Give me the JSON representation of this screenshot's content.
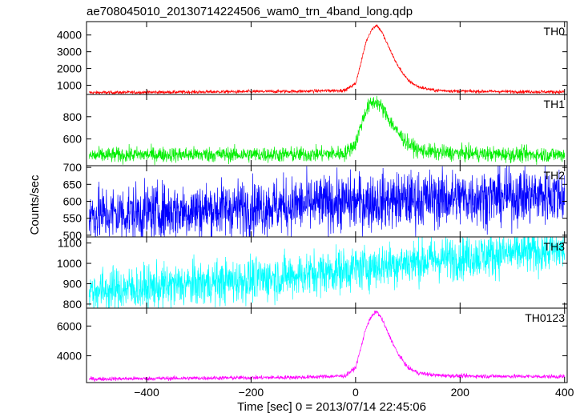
{
  "chart_data": {
    "type": "line",
    "title": "ae708045010_20130714224506_wam0_trn_4band_long.qdp",
    "xlabel": "Time [sec] 0 = 2013/07/14 22:45:06",
    "ylabel": "Counts/sec",
    "xlim": [
      -515,
      405
    ],
    "xticks": [
      -400,
      -200,
      0,
      200,
      400
    ],
    "grid": false,
    "panels": [
      {
        "name": "TH0",
        "color": "#ff0000",
        "ylim": [
          450,
          4800
        ],
        "yticks": [
          1000,
          2000,
          3000,
          4000
        ],
        "x": [
          -510,
          -400,
          -300,
          -200,
          -100,
          -20,
          0,
          10,
          20,
          30,
          40,
          50,
          60,
          80,
          100,
          120,
          150,
          200,
          300,
          400
        ],
        "y": [
          560,
          580,
          600,
          620,
          640,
          700,
          1100,
          2300,
          3600,
          4300,
          4600,
          4200,
          3500,
          2200,
          1300,
          900,
          700,
          640,
          620,
          600
        ],
        "noise": 50
      },
      {
        "name": "TH1",
        "color": "#00ee00",
        "ylim": [
          360,
          1000
        ],
        "yticks": [
          600,
          800
        ],
        "x": [
          -510,
          -400,
          -300,
          -200,
          -100,
          -20,
          0,
          10,
          20,
          30,
          40,
          50,
          60,
          80,
          100,
          120,
          150,
          200,
          300,
          400
        ],
        "y": [
          450,
          460,
          460,
          460,
          460,
          470,
          560,
          720,
          860,
          920,
          940,
          880,
          810,
          660,
          560,
          500,
          480,
          470,
          460,
          460
        ],
        "noise": 35
      },
      {
        "name": "TH2",
        "color": "#0000ff",
        "ylim": [
          495,
          705
        ],
        "yticks": [
          500,
          550,
          600,
          650,
          700
        ],
        "x": [
          -510,
          -400,
          -300,
          -200,
          -100,
          0,
          100,
          200,
          300,
          400
        ],
        "y": [
          560,
          567,
          574,
          582,
          590,
          598,
          604,
          610,
          615,
          618
        ],
        "noise": 42
      },
      {
        "name": "TH3",
        "color": "#00ffff",
        "ylim": [
          780,
          1130
        ],
        "yticks": [
          800,
          900,
          1000,
          1100
        ],
        "x": [
          -510,
          -400,
          -300,
          -200,
          -100,
          0,
          100,
          200,
          300,
          400
        ],
        "y": [
          865,
          880,
          900,
          920,
          945,
          975,
          1005,
          1030,
          1050,
          1065
        ],
        "noise": 55
      },
      {
        "name": "TH0123",
        "color": "#ff00ff",
        "ylim": [
          2200,
          7200
        ],
        "yticks": [
          4000,
          6000
        ],
        "x": [
          -510,
          -400,
          -300,
          -200,
          -100,
          -20,
          0,
          10,
          20,
          30,
          40,
          50,
          60,
          80,
          100,
          120,
          150,
          200,
          300,
          400
        ],
        "y": [
          2440,
          2470,
          2500,
          2530,
          2560,
          2650,
          3200,
          4500,
          5900,
          6600,
          7000,
          6500,
          5700,
          4200,
          3200,
          2850,
          2700,
          2640,
          2620,
          2600
        ],
        "noise": 70
      }
    ]
  }
}
